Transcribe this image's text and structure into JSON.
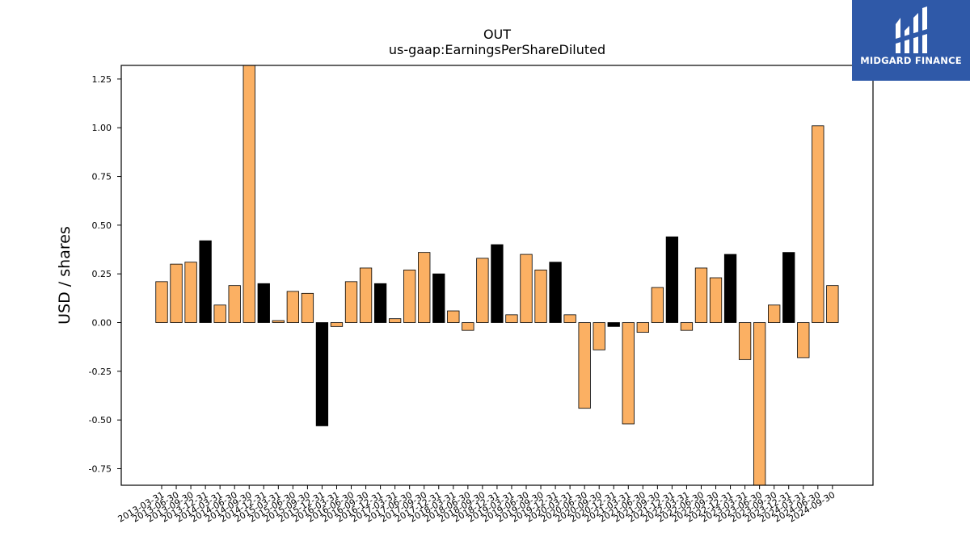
{
  "brand": {
    "name": "MIDGARD FINANCE",
    "bg_color": "#2f59a8",
    "text_color": "#ffffff"
  },
  "chart_data": {
    "type": "bar",
    "title": "OUT",
    "subtitle": "us-gaap:EarningsPerShareDiluted",
    "xlabel": "",
    "ylabel": "USD / shares",
    "ylim": [
      -0.835,
      1.32
    ],
    "yticks": [
      -0.75,
      -0.5,
      -0.25,
      0.0,
      0.25,
      0.5,
      0.75,
      1.0,
      1.25
    ],
    "grid": false,
    "colors": {
      "quarter": "#fbb063",
      "fiscal_q4": "#000000",
      "edge": "#000000"
    },
    "categories": [
      "2013-03-31",
      "2013-06-30",
      "2013-09-30",
      "2013-12-31",
      "2014-03-31",
      "2014-06-30",
      "2014-09-30",
      "2014-12-31",
      "2015-03-31",
      "2015-06-30",
      "2015-09-30",
      "2015-12-31",
      "2016-03-31",
      "2016-06-30",
      "2016-09-30",
      "2016-12-31",
      "2017-03-31",
      "2017-06-30",
      "2017-09-30",
      "2017-12-31",
      "2018-03-31",
      "2018-06-30",
      "2018-09-30",
      "2018-12-31",
      "2019-03-31",
      "2019-06-30",
      "2019-09-30",
      "2019-12-31",
      "2020-03-31",
      "2020-06-30",
      "2020-09-30",
      "2020-12-31",
      "2021-03-31",
      "2021-06-30",
      "2021-09-30",
      "2021-12-31",
      "2022-03-31",
      "2022-06-30",
      "2022-09-30",
      "2022-12-31",
      "2023-03-31",
      "2023-06-30",
      "2023-09-30",
      "2023-12-31",
      "2024-03-31",
      "2024-06-30",
      "2024-09-30"
    ],
    "values": [
      0.21,
      0.3,
      0.31,
      0.42,
      0.09,
      0.19,
      1.34,
      0.2,
      0.01,
      0.16,
      0.15,
      -0.53,
      -0.02,
      0.21,
      0.28,
      0.2,
      0.02,
      0.27,
      0.36,
      0.25,
      0.06,
      -0.04,
      0.33,
      0.4,
      0.04,
      0.35,
      0.27,
      0.31,
      0.04,
      -0.44,
      -0.14,
      -0.02,
      -0.52,
      -0.05,
      0.18,
      0.44,
      -0.04,
      0.28,
      0.23,
      0.35,
      -0.19,
      -0.84,
      0.09,
      0.36,
      -0.18,
      1.01,
      0.19
    ],
    "highlight": [
      false,
      false,
      false,
      true,
      false,
      false,
      false,
      true,
      false,
      false,
      false,
      true,
      false,
      false,
      false,
      true,
      false,
      false,
      false,
      true,
      false,
      false,
      false,
      true,
      false,
      false,
      false,
      true,
      false,
      false,
      false,
      true,
      false,
      false,
      false,
      true,
      false,
      false,
      false,
      true,
      false,
      false,
      false,
      true,
      false,
      false,
      false
    ]
  }
}
